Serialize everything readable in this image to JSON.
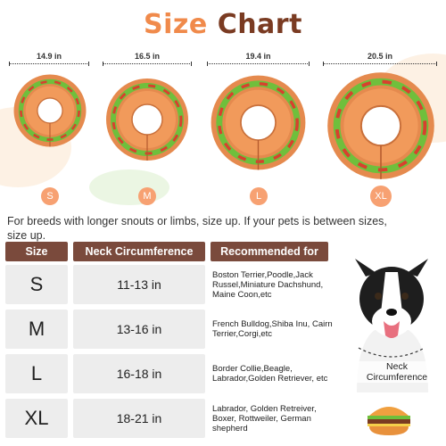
{
  "title": {
    "word1": "Size",
    "word2": "Chart"
  },
  "collars": [
    {
      "size": "S",
      "width_label": "14.9 in"
    },
    {
      "size": "M",
      "width_label": "16.5 in"
    },
    {
      "size": "L",
      "width_label": "19.4 in"
    },
    {
      "size": "XL",
      "width_label": "20.5 in"
    }
  ],
  "note": "For breeds with longer snouts or limbs, size up. If your pets is between sizes, size up.",
  "table": {
    "headers": {
      "size": "Size",
      "neck": "Neck Circumference",
      "recommended": "Recommended for"
    },
    "rows": [
      {
        "size": "S",
        "neck": "11-13 in",
        "recommended": "Boston Terrier,Poodle,Jack Russel,Miniature Dachshund, Maine Coon,etc"
      },
      {
        "size": "M",
        "neck": "13-16 in",
        "recommended": "French Bulldog,Shiba Inu, Cairn Terrier,Corgi,etc"
      },
      {
        "size": "L",
        "neck": "16-18 in",
        "recommended": "Border Collie,Beagle, Labrador,Golden Retriever, etc"
      },
      {
        "size": "XL",
        "neck": "18-21 in",
        "recommended": "Labrador, Golden Retreiver, Boxer, Rottweiler, German shepherd"
      }
    ]
  },
  "neck_label": "Neck Circumference",
  "colors": {
    "accent": "#f08a4b",
    "brown": "#7a4a3c",
    "cell_bg": "#ededed",
    "badge": "#f7a172"
  }
}
